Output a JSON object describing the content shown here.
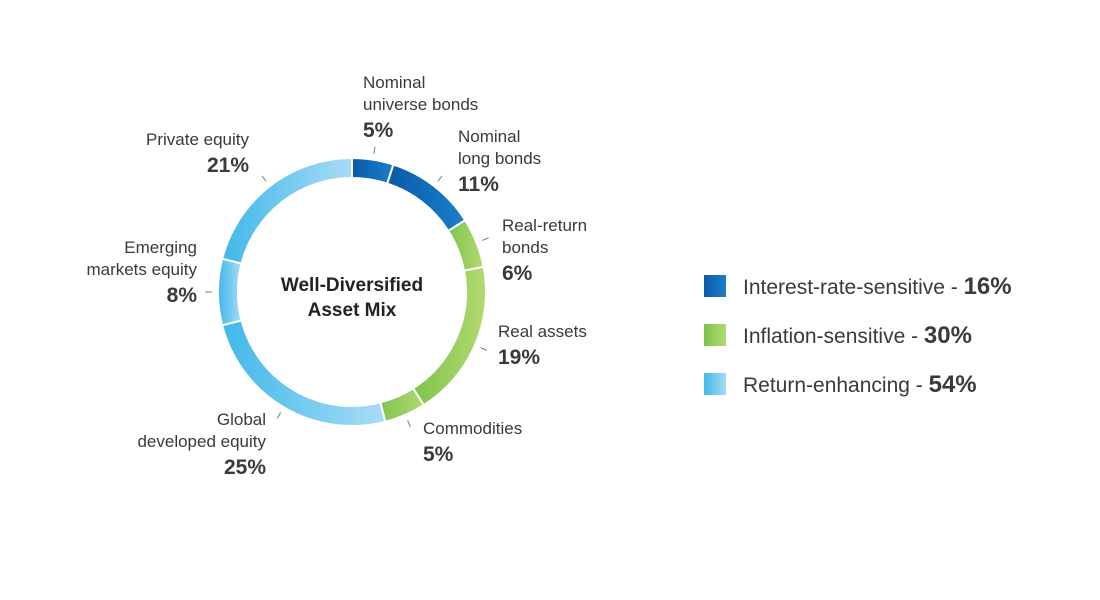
{
  "chart_data": {
    "type": "pie",
    "variant": "donut",
    "center_label": [
      "Well-Diversified",
      "Asset Mix"
    ],
    "slices": [
      {
        "label": [
          "Nominal",
          "universe bonds"
        ],
        "value": 5,
        "value_label": "5%",
        "group": 0
      },
      {
        "label": [
          "Nominal",
          "long bonds"
        ],
        "value": 11,
        "value_label": "11%",
        "group": 0
      },
      {
        "label": [
          "Real-return",
          "bonds"
        ],
        "value": 6,
        "value_label": "6%",
        "group": 1
      },
      {
        "label": [
          "Real assets"
        ],
        "value": 19,
        "value_label": "19%",
        "group": 1
      },
      {
        "label": [
          "Commodities"
        ],
        "value": 5,
        "value_label": "5%",
        "group": 1
      },
      {
        "label": [
          "Global",
          "developed equity"
        ],
        "value": 25,
        "value_label": "25%",
        "group": 2
      },
      {
        "label": [
          "Emerging",
          "markets equity"
        ],
        "value": 8,
        "value_label": "8%",
        "group": 2
      },
      {
        "label": [
          "Private equity"
        ],
        "value": 21,
        "value_label": "21%",
        "group": 2
      }
    ],
    "groups": [
      {
        "name": "Interest-rate-sensitive - ",
        "value_label": "16%",
        "colors": [
          "#0a5aa8",
          "#1a7fc8"
        ]
      },
      {
        "name": "Inflation-sensitive - ",
        "value_label": "30%",
        "colors": [
          "#7ec44e",
          "#b2d970"
        ]
      },
      {
        "name": "Return-enhancing - ",
        "value_label": "54%",
        "colors": [
          "#40b8ea",
          "#a9dcf6"
        ]
      }
    ],
    "legend_position": "right"
  }
}
